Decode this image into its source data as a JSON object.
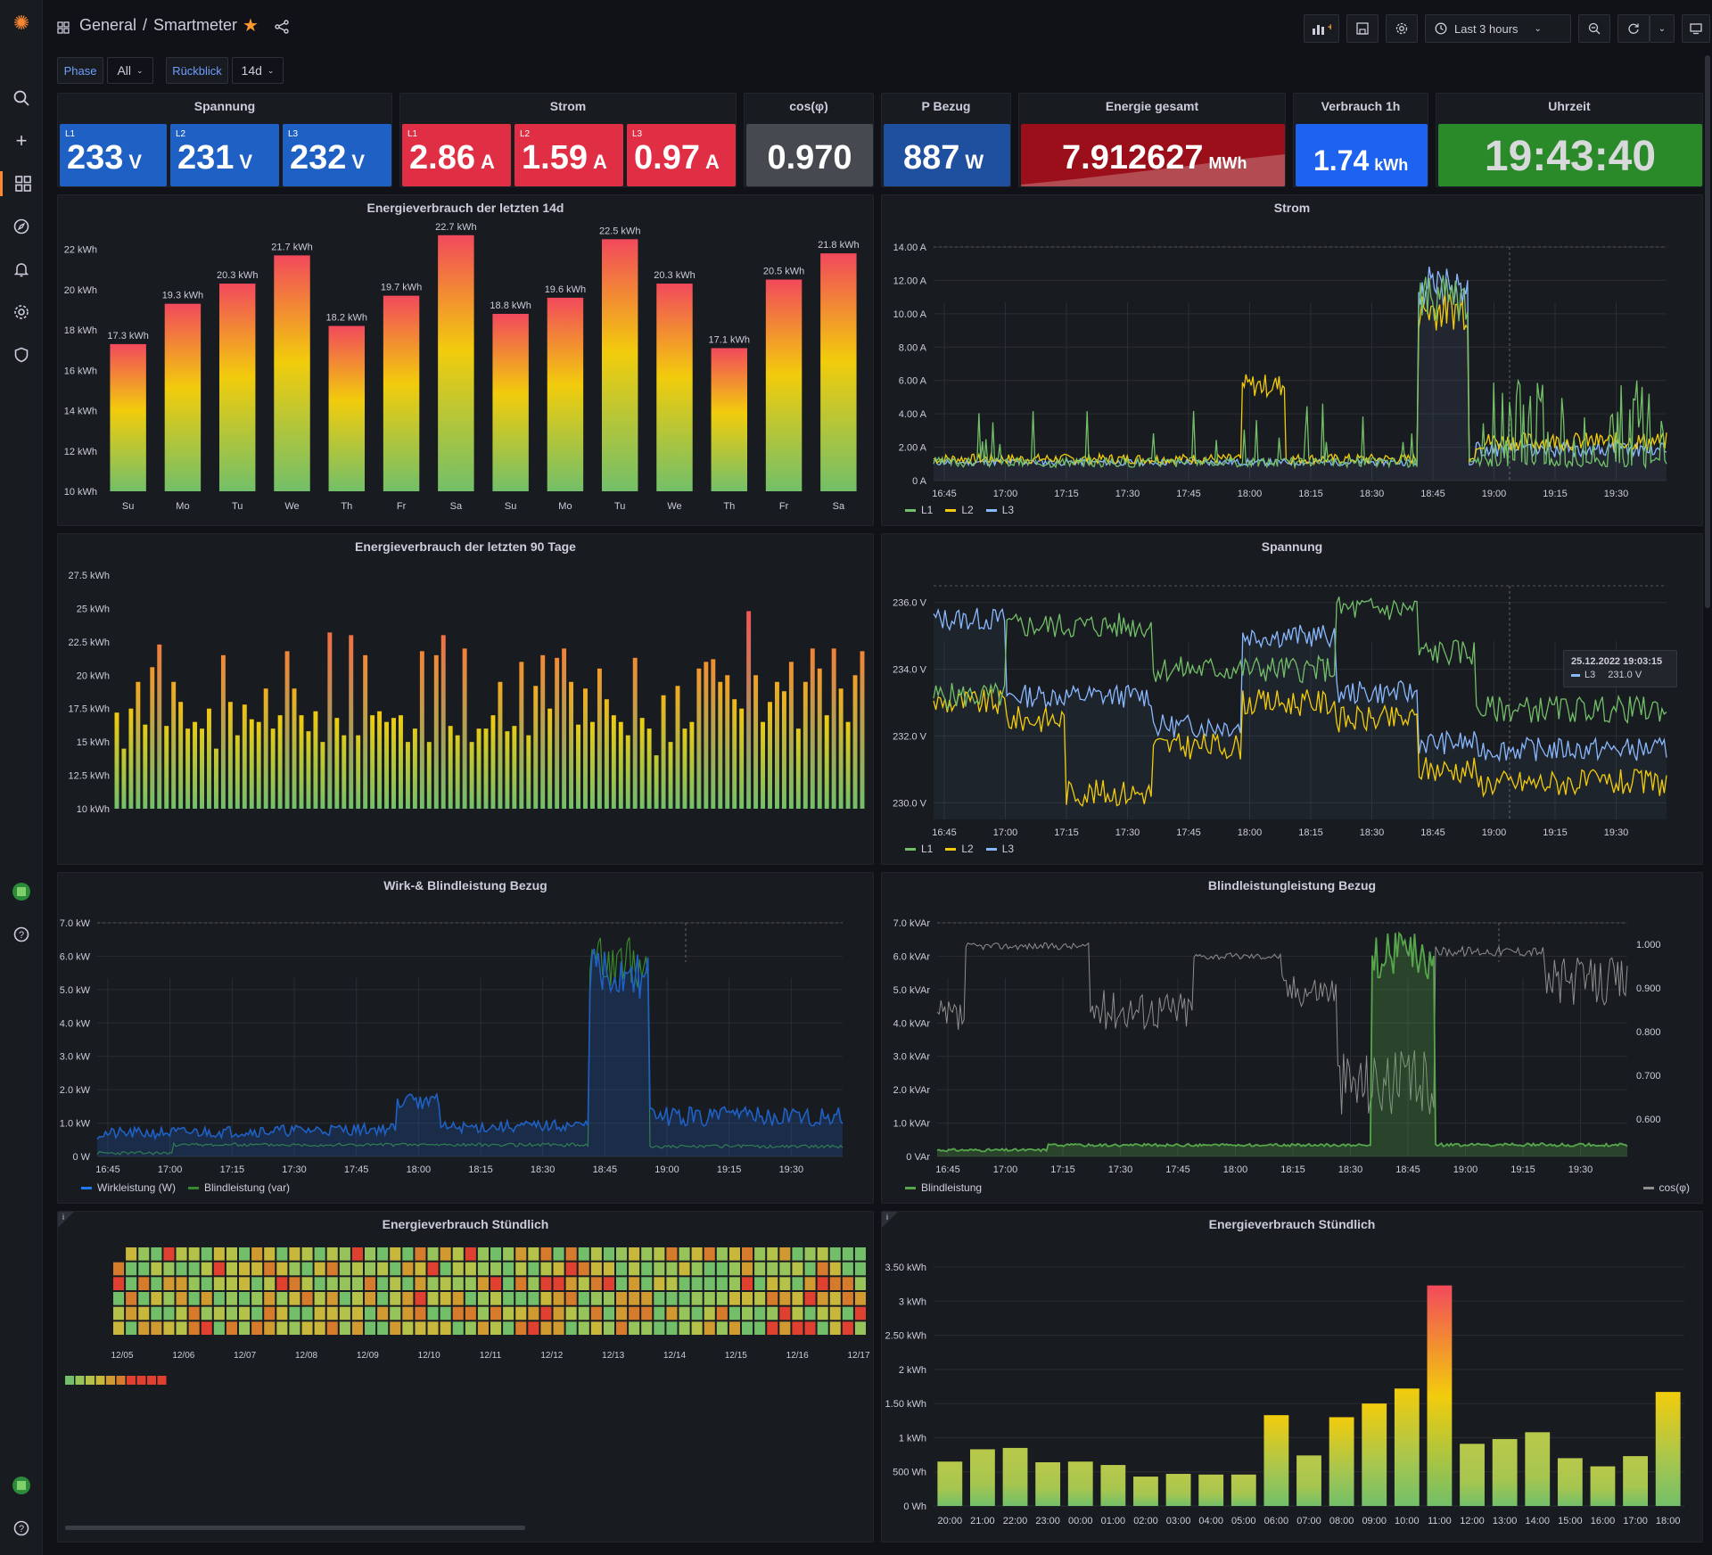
{
  "breadcrumb": {
    "folder": "General",
    "separator": "/",
    "dashboard": "Smartmeter"
  },
  "toolbar": {
    "time_range": "Last 3 hours"
  },
  "variables": [
    {
      "label": "Phase",
      "value": "All"
    },
    {
      "label": "Rückblick",
      "value": "14d"
    }
  ],
  "colors": {
    "green": "#73bf69",
    "yellow": "#f2cc0c",
    "blue": "#8ab8ff",
    "orange": "#ff9830",
    "red": "#f2495c"
  },
  "stats": {
    "spannung": {
      "title": "Spannung",
      "items": [
        {
          "phase": "L1",
          "value": "233",
          "unit": "V"
        },
        {
          "phase": "L2",
          "value": "231",
          "unit": "V"
        },
        {
          "phase": "L3",
          "value": "232",
          "unit": "V"
        }
      ]
    },
    "strom": {
      "title": "Strom",
      "items": [
        {
          "phase": "L1",
          "value": "2.86",
          "unit": "A"
        },
        {
          "phase": "L2",
          "value": "1.59",
          "unit": "A"
        },
        {
          "phase": "L3",
          "value": "0.97",
          "unit": "A"
        }
      ]
    },
    "cosphi": {
      "title": "cos(φ)",
      "value": "0.970"
    },
    "pbezug": {
      "title": "P Bezug",
      "value": "887",
      "unit": "W"
    },
    "energie": {
      "title": "Energie gesamt",
      "value": "7.912627",
      "unit": "MWh"
    },
    "verbrauch": {
      "title": "Verbrauch 1h",
      "value": "1.74",
      "unit": "kWh"
    },
    "uhrzeit": {
      "title": "Uhrzeit",
      "value": "19:43:40"
    }
  },
  "time_ticks": [
    "16:45",
    "17:00",
    "17:15",
    "17:30",
    "17:45",
    "18:00",
    "18:15",
    "18:30",
    "18:45",
    "19:00",
    "19:15",
    "19:30"
  ],
  "chart_data": [
    {
      "type": "bar",
      "title": "Energieverbrauch der letzten 14d",
      "categories": [
        "Su",
        "Mo",
        "Tu",
        "We",
        "Th",
        "Fr",
        "Sa",
        "Su",
        "Mo",
        "Tu",
        "We",
        "Th",
        "Fr",
        "Sa"
      ],
      "values": [
        17.3,
        19.3,
        20.3,
        21.7,
        18.2,
        19.7,
        22.7,
        18.8,
        19.6,
        22.5,
        20.3,
        17.1,
        20.5,
        21.8
      ],
      "value_labels": [
        "17.3 kWh",
        "19.3 kWh",
        "20.3 kWh",
        "21.7 kWh",
        "18.2 kWh",
        "19.7 kWh",
        "22.7 kWh",
        "18.8 kWh",
        "19.6 kWh",
        "22.5 kWh",
        "20.3 kWh",
        "17.1 kWh",
        "20.5 kWh",
        "21.8 kWh"
      ],
      "yticks": [
        "10 kWh",
        "12 kWh",
        "14 kWh",
        "16 kWh",
        "18 kWh",
        "20 kWh",
        "22 kWh"
      ],
      "ylim": [
        10,
        23
      ]
    },
    {
      "type": "line",
      "title": "Strom",
      "yticks": [
        "0 A",
        "2.00 A",
        "4.00 A",
        "6.00 A",
        "8.00 A",
        "10.00 A",
        "12.00 A",
        "14.00 A"
      ],
      "ylim": [
        0,
        14
      ],
      "series": [
        {
          "name": "L1"
        },
        {
          "name": "L2"
        },
        {
          "name": "L3"
        }
      ]
    },
    {
      "type": "bar",
      "title": "Energieverbrauch der letzten 90 Tage",
      "yticks": [
        "10 kWh",
        "12.5 kWh",
        "15 kWh",
        "17.5 kWh",
        "20 kWh",
        "22.5 kWh",
        "25 kWh",
        "27.5 kWh"
      ],
      "ylim": [
        10,
        27.5
      ],
      "values": [
        17.2,
        14.5,
        17.5,
        19.5,
        16.3,
        20.6,
        22.3,
        16.2,
        19.5,
        18.0,
        16.0,
        16.5,
        16.0,
        17.5,
        14.5,
        21.5,
        18.0,
        15.5,
        17.8,
        16.7,
        16.5,
        19.0,
        16.0,
        17.0,
        21.8,
        19.0,
        17.0,
        15.8,
        17.3,
        15.0,
        23.2,
        16.8,
        15.5,
        23.0,
        15.5,
        21.5,
        17.0,
        17.3,
        16.5,
        16.8,
        17.0,
        15.0,
        16.0,
        21.8,
        15.0,
        21.5,
        23.0,
        16.2,
        15.5,
        22.0,
        15.0,
        16.0,
        16.0,
        17.0,
        19.5,
        15.8,
        16.2,
        21.0,
        15.5,
        19.2,
        21.5,
        17.5,
        21.3,
        22.0,
        19.5,
        16.3,
        19.0,
        16.5,
        20.5,
        18.2,
        17.0,
        16.5,
        15.5,
        21.3,
        16.8,
        16.0,
        14.0,
        18.5,
        15.0,
        19.2,
        16.0,
        16.5,
        20.5,
        21.0,
        21.2,
        19.5,
        20.0,
        18.2,
        17.5,
        24.8,
        20.0,
        16.5,
        18.0,
        19.5,
        18.8,
        21.0,
        16.0,
        19.5,
        22.0,
        20.5,
        17.0,
        22.0,
        19.0,
        16.5,
        20.0,
        21.8
      ]
    },
    {
      "type": "line",
      "title": "Spannung",
      "yticks": [
        "230.0 V",
        "232.0 V",
        "234.0 V",
        "236.0 V"
      ],
      "ylim": [
        229.5,
        236.5
      ],
      "series": [
        {
          "name": "L1"
        },
        {
          "name": "L2"
        },
        {
          "name": "L3"
        }
      ],
      "tooltip": {
        "time": "25.12.2022 19:03:15",
        "series": "L3",
        "value": "231.0 V"
      }
    },
    {
      "type": "area",
      "title": "Wirk-& Blindleistung Bezug",
      "yticks": [
        "0 W",
        "1.0 kW",
        "2.0 kW",
        "3.0 kW",
        "4.0 kW",
        "5.0 kW",
        "6.0 kW",
        "7.0 kW"
      ],
      "ylim": [
        0,
        7
      ],
      "series": [
        {
          "name": "Wirkleistung (W)"
        },
        {
          "name": "Blindleistung (var)"
        }
      ]
    },
    {
      "type": "line",
      "title": "Blindleistungleistung Bezug",
      "yticks": [
        "0 VAr",
        "1.0 kVAr",
        "2.0 kVAr",
        "3.0 kVAr",
        "4.0 kVAr",
        "5.0 kVAr",
        "6.0 kVAr",
        "7.0 kVAr"
      ],
      "yticks_right": [
        "0.600",
        "0.700",
        "0.800",
        "0.900",
        "1.000"
      ],
      "ylim": [
        0,
        7
      ],
      "series": [
        {
          "name": "Blindleistung"
        },
        {
          "name": "cos(φ)"
        }
      ]
    },
    {
      "type": "heatmap",
      "title": "Energieverbrauch Stündlich",
      "xticks": [
        "12/05",
        "12/06",
        "12/07",
        "12/08",
        "12/09",
        "12/10",
        "12/11",
        "12/12",
        "12/13",
        "12/14",
        "12/15",
        "12/16",
        "12/17"
      ]
    },
    {
      "type": "bar",
      "title": "Energieverbrauch Stündlich",
      "categories": [
        "20:00",
        "21:00",
        "22:00",
        "23:00",
        "00:00",
        "01:00",
        "02:00",
        "03:00",
        "04:00",
        "05:00",
        "06:00",
        "07:00",
        "08:00",
        "09:00",
        "10:00",
        "11:00",
        "12:00",
        "13:00",
        "14:00",
        "15:00",
        "16:00",
        "17:00",
        "18:00"
      ],
      "values": [
        0.65,
        0.83,
        0.85,
        0.64,
        0.65,
        0.6,
        0.43,
        0.47,
        0.46,
        0.46,
        1.33,
        0.74,
        1.3,
        1.5,
        1.72,
        3.23,
        0.91,
        0.98,
        1.08,
        0.7,
        0.58,
        0.73,
        1.67
      ],
      "yticks": [
        "0 Wh",
        "500 Wh",
        "1 kWh",
        "1.50 kWh",
        "2 kWh",
        "2.50 kWh",
        "3 kWh",
        "3.50 kWh"
      ],
      "ylim": [
        0,
        3.5
      ]
    }
  ]
}
